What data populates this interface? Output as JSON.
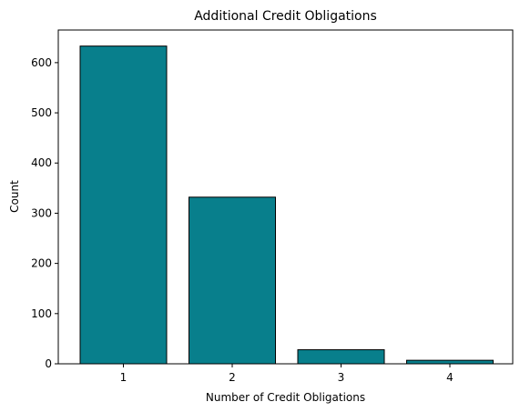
{
  "chart_data": {
    "type": "bar",
    "title": "Additional Credit Obligations",
    "xlabel": "Number of Credit Obligations",
    "ylabel": "Count",
    "categories": [
      "1",
      "2",
      "3",
      "4"
    ],
    "values": [
      633,
      332,
      28,
      7
    ],
    "ylim": [
      0,
      665
    ],
    "yticks": [
      0,
      100,
      200,
      300,
      400,
      500,
      600
    ],
    "grid": false,
    "bar_color": "#087f8c",
    "bar_edge_color": "#000000"
  }
}
